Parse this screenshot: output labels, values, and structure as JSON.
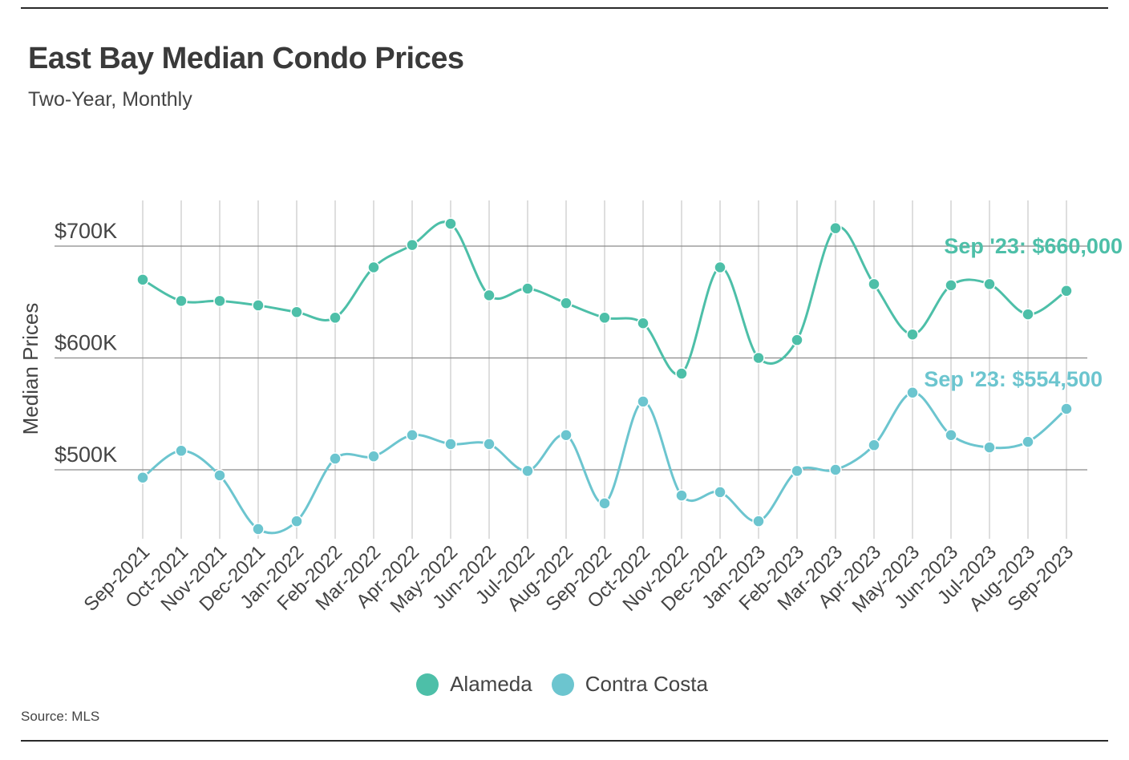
{
  "header": {
    "title": "East Bay Median Condo Prices",
    "subtitle": "Two-Year, Monthly"
  },
  "footer": {
    "source": "Source: MLS"
  },
  "chart_data": {
    "type": "line",
    "title": "East Bay Median Condo Prices",
    "subtitle": "Two-Year, Monthly",
    "xlabel": "",
    "ylabel": "Median Prices",
    "ylim": [
      440000,
      720000
    ],
    "yticks": [
      500000,
      600000,
      700000
    ],
    "ytick_labels": [
      "$500K",
      "$600K",
      "$700K"
    ],
    "grid": true,
    "legend": "bottom",
    "categories": [
      "Sep-2021",
      "Oct-2021",
      "Nov-2021",
      "Dec-2021",
      "Jan-2022",
      "Feb-2022",
      "Mar-2022",
      "Apr-2022",
      "May-2022",
      "Jun-2022",
      "Jul-2022",
      "Aug-2022",
      "Sep-2022",
      "Oct-2022",
      "Nov-2022",
      "Dec-2022",
      "Jan-2023",
      "Feb-2023",
      "Mar-2023",
      "Apr-2023",
      "May-2023",
      "Jun-2023",
      "Jul-2023",
      "Aug-2023",
      "Sep-2023"
    ],
    "series": [
      {
        "name": "Alameda",
        "color": "#4dbfa8",
        "values": [
          670000,
          651000,
          651000,
          647000,
          641000,
          636000,
          681000,
          701000,
          720000,
          656000,
          662000,
          649000,
          636000,
          631000,
          586000,
          681000,
          600000,
          616000,
          716000,
          666000,
          621000,
          665000,
          666000,
          639000,
          660000
        ],
        "annotation": "Sep '23: $660,000"
      },
      {
        "name": "Contra Costa",
        "color": "#6cc5cf",
        "values": [
          493000,
          517000,
          495000,
          447000,
          454000,
          510000,
          512000,
          531000,
          523000,
          523000,
          499000,
          531000,
          470000,
          561000,
          477000,
          480000,
          454000,
          499000,
          500000,
          522000,
          569000,
          531000,
          520000,
          525000,
          554500
        ],
        "annotation": "Sep '23: $554,500"
      }
    ]
  }
}
